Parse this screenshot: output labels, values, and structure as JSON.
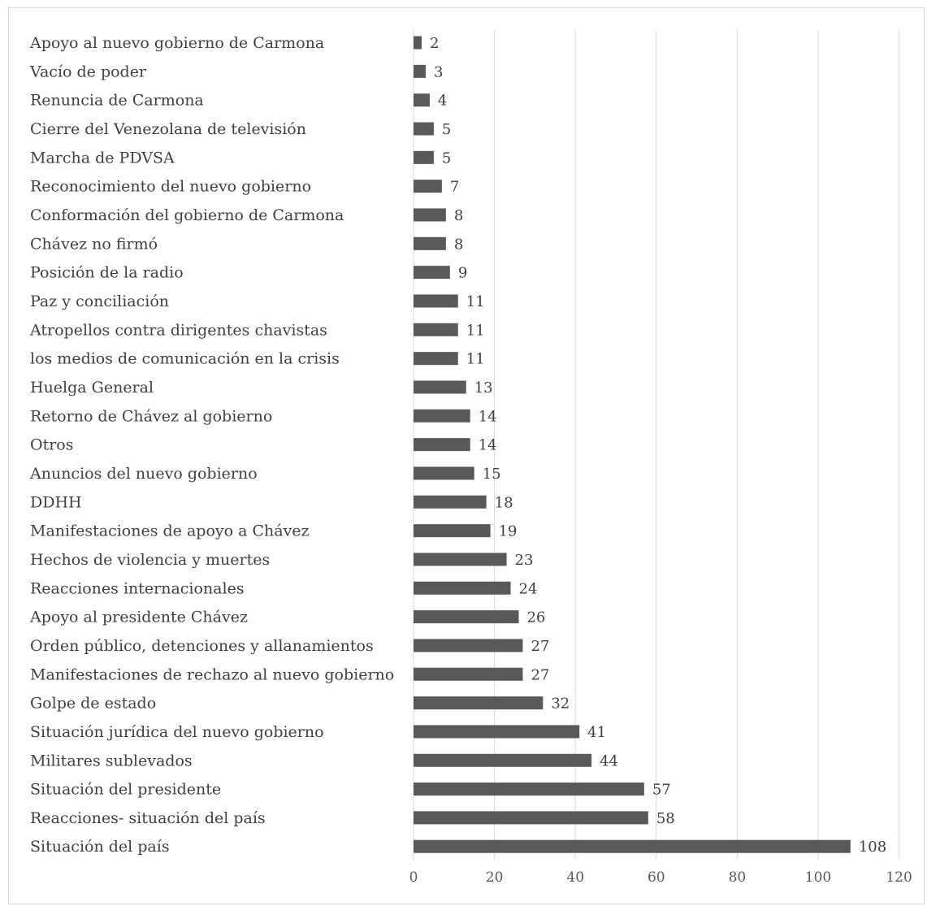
{
  "chart_data": {
    "type": "bar",
    "orientation": "horizontal",
    "categories": [
      "Apoyo al nuevo gobierno de Carmona",
      "Vacío de poder",
      "Renuncia de Carmona",
      "Cierre del Venezolana de televisión",
      "Marcha de PDVSA",
      "Reconocimiento del nuevo gobierno",
      "Conformación del gobierno de Carmona",
      "Chávez no firmó",
      "Posición de la radio",
      "Paz y conciliación",
      "Atropellos contra dirigentes chavistas",
      "los medios de comunicación en la crisis",
      "Huelga General",
      "Retorno de Chávez al gobierno",
      "Otros",
      "Anuncios del nuevo gobierno",
      "DDHH",
      "Manifestaciones de apoyo a Chávez",
      "Hechos de violencia y muertes",
      "Reacciones internacionales",
      "Apoyo al presidente Chávez",
      "Orden público, detenciones y allanamientos",
      "Manifestaciones de rechazo al nuevo gobierno",
      "Golpe de estado",
      "Situación jurídica del nuevo gobierno",
      "Militares sublevados",
      "Situación del presidente",
      "Reacciones- situación del país",
      "Situación del país"
    ],
    "values": [
      2,
      3,
      4,
      5,
      5,
      7,
      8,
      8,
      9,
      11,
      11,
      11,
      13,
      14,
      14,
      15,
      18,
      19,
      23,
      24,
      26,
      27,
      27,
      32,
      41,
      44,
      57,
      58,
      108
    ],
    "xlim": [
      0,
      120
    ],
    "xticks": [
      0,
      20,
      40,
      60,
      80,
      100,
      120
    ],
    "grid": "vertical",
    "data_labels": true,
    "bar_color": "#595959",
    "grid_color": "#d9d9d9",
    "text_color": "#404040"
  }
}
